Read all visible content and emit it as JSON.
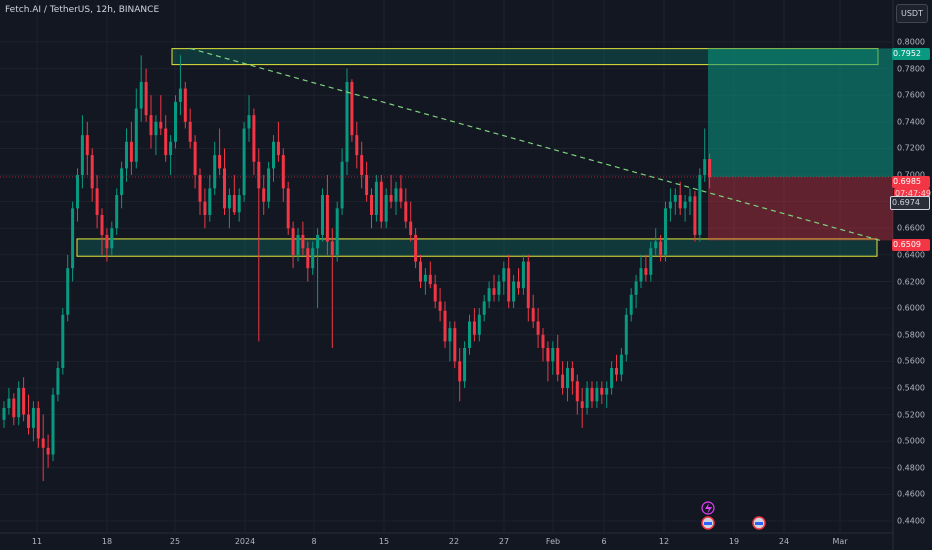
{
  "header": {
    "title": "Fetch.AI / TetherUS, 12h, BINANCE",
    "currency": "USDT"
  },
  "chart_data": {
    "type": "candlestick",
    "symbol": "Fetch.AI / TetherUS",
    "interval": "12h",
    "exchange": "BINANCE",
    "y_ticks": [
      "0.8000",
      "0.7800",
      "0.7600",
      "0.7400",
      "0.7200",
      "0.7000",
      "0.6800",
      "0.6600",
      "0.6400",
      "0.6200",
      "0.6000",
      "0.5800",
      "0.5600",
      "0.5400",
      "0.5200",
      "0.5000",
      "0.4800",
      "0.4600",
      "0.4400"
    ],
    "x_ticks": [
      "11",
      "18",
      "25",
      "2024",
      "8",
      "15",
      "22",
      "27",
      "Feb",
      "6",
      "12",
      "19",
      "24",
      "Mar"
    ],
    "ylim": [
      0.431,
      0.803
    ],
    "grid": true,
    "price_tags": {
      "target": "0.7952",
      "last": "0.6985",
      "countdown": "07:47:49",
      "trendline": "0.6974",
      "stop": "0.6509"
    },
    "zones": [
      {
        "role": "resistance",
        "from": 0.783,
        "to": 0.795
      },
      {
        "role": "support",
        "from": 0.639,
        "to": 0.652
      }
    ],
    "position": {
      "entry": 0.6985,
      "target": 0.7952,
      "stop": 0.6509
    },
    "trendline": {
      "from": 0.7952,
      "to": 0.6509
    },
    "candles": [
      [
        0.516,
        0.53,
        0.51,
        0.525
      ],
      [
        0.525,
        0.54,
        0.52,
        0.532
      ],
      [
        0.532,
        0.536,
        0.512,
        0.518
      ],
      [
        0.518,
        0.545,
        0.512,
        0.54
      ],
      [
        0.54,
        0.548,
        0.515,
        0.52
      ],
      [
        0.52,
        0.535,
        0.505,
        0.51
      ],
      [
        0.51,
        0.53,
        0.5,
        0.525
      ],
      [
        0.525,
        0.53,
        0.495,
        0.502
      ],
      [
        0.502,
        0.52,
        0.47,
        0.495
      ],
      [
        0.495,
        0.505,
        0.48,
        0.49
      ],
      [
        0.49,
        0.54,
        0.485,
        0.535
      ],
      [
        0.535,
        0.56,
        0.53,
        0.555
      ],
      [
        0.555,
        0.6,
        0.55,
        0.595
      ],
      [
        0.595,
        0.64,
        0.59,
        0.63
      ],
      [
        0.63,
        0.68,
        0.62,
        0.675
      ],
      [
        0.675,
        0.705,
        0.665,
        0.7
      ],
      [
        0.7,
        0.745,
        0.69,
        0.73
      ],
      [
        0.73,
        0.74,
        0.7,
        0.715
      ],
      [
        0.715,
        0.72,
        0.68,
        0.69
      ],
      [
        0.69,
        0.7,
        0.66,
        0.67
      ],
      [
        0.67,
        0.675,
        0.64,
        0.655
      ],
      [
        0.655,
        0.66,
        0.635,
        0.645
      ],
      [
        0.645,
        0.665,
        0.64,
        0.66
      ],
      [
        0.66,
        0.69,
        0.655,
        0.685
      ],
      [
        0.685,
        0.71,
        0.675,
        0.705
      ],
      [
        0.705,
        0.735,
        0.695,
        0.725
      ],
      [
        0.725,
        0.74,
        0.7,
        0.71
      ],
      [
        0.71,
        0.765,
        0.705,
        0.75
      ],
      [
        0.75,
        0.79,
        0.74,
        0.77
      ],
      [
        0.77,
        0.78,
        0.74,
        0.745
      ],
      [
        0.745,
        0.76,
        0.72,
        0.73
      ],
      [
        0.73,
        0.745,
        0.715,
        0.74
      ],
      [
        0.74,
        0.76,
        0.73,
        0.735
      ],
      [
        0.735,
        0.745,
        0.71,
        0.715
      ],
      [
        0.715,
        0.73,
        0.7,
        0.725
      ],
      [
        0.725,
        0.76,
        0.72,
        0.755
      ],
      [
        0.755,
        0.79,
        0.745,
        0.765
      ],
      [
        0.765,
        0.77,
        0.735,
        0.74
      ],
      [
        0.74,
        0.75,
        0.72,
        0.725
      ],
      [
        0.725,
        0.73,
        0.69,
        0.7
      ],
      [
        0.7,
        0.705,
        0.67,
        0.68
      ],
      [
        0.68,
        0.69,
        0.66,
        0.67
      ],
      [
        0.67,
        0.7,
        0.665,
        0.69
      ],
      [
        0.69,
        0.725,
        0.685,
        0.715
      ],
      [
        0.715,
        0.735,
        0.7,
        0.705
      ],
      [
        0.705,
        0.72,
        0.67,
        0.675
      ],
      [
        0.675,
        0.69,
        0.66,
        0.685
      ],
      [
        0.685,
        0.7,
        0.67,
        0.672
      ],
      [
        0.672,
        0.69,
        0.665,
        0.685
      ],
      [
        0.685,
        0.74,
        0.68,
        0.735
      ],
      [
        0.735,
        0.76,
        0.725,
        0.745
      ],
      [
        0.745,
        0.75,
        0.7,
        0.71
      ],
      [
        0.71,
        0.72,
        0.575,
        0.69
      ],
      [
        0.69,
        0.7,
        0.67,
        0.68
      ],
      [
        0.68,
        0.71,
        0.675,
        0.705
      ],
      [
        0.705,
        0.73,
        0.695,
        0.725
      ],
      [
        0.725,
        0.74,
        0.71,
        0.715
      ],
      [
        0.715,
        0.72,
        0.68,
        0.69
      ],
      [
        0.69,
        0.695,
        0.655,
        0.66
      ],
      [
        0.66,
        0.665,
        0.63,
        0.64
      ],
      [
        0.64,
        0.66,
        0.635,
        0.655
      ],
      [
        0.655,
        0.665,
        0.64,
        0.645
      ],
      [
        0.645,
        0.65,
        0.62,
        0.63
      ],
      [
        0.63,
        0.65,
        0.625,
        0.645
      ],
      [
        0.645,
        0.66,
        0.6,
        0.655
      ],
      [
        0.655,
        0.69,
        0.65,
        0.685
      ],
      [
        0.685,
        0.7,
        0.64,
        0.65
      ],
      [
        0.65,
        0.66,
        0.57,
        0.64
      ],
      [
        0.64,
        0.68,
        0.635,
        0.675
      ],
      [
        0.675,
        0.72,
        0.67,
        0.71
      ],
      [
        0.71,
        0.78,
        0.7,
        0.77
      ],
      [
        0.77,
        0.772,
        0.725,
        0.73
      ],
      [
        0.73,
        0.74,
        0.705,
        0.715
      ],
      [
        0.715,
        0.725,
        0.69,
        0.7
      ],
      [
        0.7,
        0.71,
        0.68,
        0.685
      ],
      [
        0.685,
        0.69,
        0.66,
        0.67
      ],
      [
        0.67,
        0.7,
        0.665,
        0.695
      ],
      [
        0.695,
        0.7,
        0.66,
        0.665
      ],
      [
        0.665,
        0.69,
        0.66,
        0.685
      ],
      [
        0.685,
        0.7,
        0.675,
        0.68
      ],
      [
        0.68,
        0.695,
        0.67,
        0.69
      ],
      [
        0.69,
        0.7,
        0.675,
        0.68
      ],
      [
        0.68,
        0.69,
        0.66,
        0.665
      ],
      [
        0.665,
        0.68,
        0.65,
        0.655
      ],
      [
        0.655,
        0.66,
        0.63,
        0.635
      ],
      [
        0.635,
        0.64,
        0.615,
        0.62
      ],
      [
        0.62,
        0.63,
        0.61,
        0.625
      ],
      [
        0.625,
        0.635,
        0.615,
        0.618
      ],
      [
        0.618,
        0.625,
        0.6,
        0.605
      ],
      [
        0.605,
        0.615,
        0.59,
        0.598
      ],
      [
        0.598,
        0.605,
        0.57,
        0.575
      ],
      [
        0.575,
        0.59,
        0.56,
        0.585
      ],
      [
        0.585,
        0.59,
        0.555,
        0.56
      ],
      [
        0.56,
        0.57,
        0.53,
        0.545
      ],
      [
        0.545,
        0.575,
        0.54,
        0.57
      ],
      [
        0.57,
        0.595,
        0.565,
        0.59
      ],
      [
        0.59,
        0.6,
        0.575,
        0.58
      ],
      [
        0.58,
        0.6,
        0.575,
        0.595
      ],
      [
        0.595,
        0.61,
        0.59,
        0.605
      ],
      [
        0.605,
        0.62,
        0.6,
        0.615
      ],
      [
        0.615,
        0.625,
        0.605,
        0.61
      ],
      [
        0.61,
        0.625,
        0.605,
        0.62
      ],
      [
        0.62,
        0.635,
        0.61,
        0.63
      ],
      [
        0.63,
        0.64,
        0.6,
        0.605
      ],
      [
        0.605,
        0.625,
        0.6,
        0.62
      ],
      [
        0.62,
        0.63,
        0.61,
        0.615
      ],
      [
        0.615,
        0.64,
        0.61,
        0.635
      ],
      [
        0.635,
        0.64,
        0.59,
        0.6
      ],
      [
        0.6,
        0.61,
        0.585,
        0.59
      ],
      [
        0.59,
        0.6,
        0.57,
        0.58
      ],
      [
        0.58,
        0.585,
        0.56,
        0.57
      ],
      [
        0.57,
        0.575,
        0.545,
        0.56
      ],
      [
        0.56,
        0.575,
        0.55,
        0.57
      ],
      [
        0.57,
        0.58,
        0.545,
        0.55
      ],
      [
        0.55,
        0.56,
        0.535,
        0.54
      ],
      [
        0.54,
        0.56,
        0.53,
        0.555
      ],
      [
        0.555,
        0.56,
        0.535,
        0.545
      ],
      [
        0.545,
        0.55,
        0.52,
        0.53
      ],
      [
        0.53,
        0.54,
        0.51,
        0.525
      ],
      [
        0.525,
        0.545,
        0.52,
        0.54
      ],
      [
        0.54,
        0.545,
        0.525,
        0.53
      ],
      [
        0.53,
        0.545,
        0.525,
        0.54
      ],
      [
        0.54,
        0.545,
        0.528,
        0.535
      ],
      [
        0.535,
        0.545,
        0.525,
        0.54
      ],
      [
        0.54,
        0.56,
        0.535,
        0.555
      ],
      [
        0.555,
        0.565,
        0.545,
        0.55
      ],
      [
        0.55,
        0.57,
        0.545,
        0.565
      ],
      [
        0.565,
        0.6,
        0.56,
        0.595
      ],
      [
        0.595,
        0.615,
        0.59,
        0.61
      ],
      [
        0.61,
        0.625,
        0.6,
        0.62
      ],
      [
        0.62,
        0.64,
        0.615,
        0.63
      ],
      [
        0.63,
        0.64,
        0.62,
        0.625
      ],
      [
        0.625,
        0.65,
        0.62,
        0.645
      ],
      [
        0.645,
        0.66,
        0.64,
        0.65
      ],
      [
        0.65,
        0.655,
        0.635,
        0.64
      ],
      [
        0.64,
        0.68,
        0.635,
        0.675
      ],
      [
        0.675,
        0.69,
        0.665,
        0.68
      ],
      [
        0.68,
        0.69,
        0.67,
        0.685
      ],
      [
        0.685,
        0.695,
        0.67,
        0.675
      ],
      [
        0.675,
        0.685,
        0.665,
        0.68
      ],
      [
        0.68,
        0.69,
        0.67,
        0.684
      ],
      [
        0.684,
        0.688,
        0.65,
        0.655
      ],
      [
        0.655,
        0.705,
        0.65,
        0.7
      ],
      [
        0.7,
        0.735,
        0.695,
        0.712
      ],
      [
        0.712,
        0.716,
        0.69,
        0.6985
      ]
    ]
  }
}
